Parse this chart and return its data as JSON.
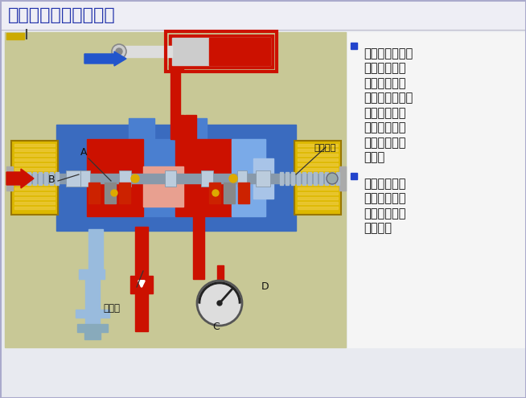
{
  "title": "（十五）动臂再生回路",
  "title_color": "#2233aa",
  "bg_top": "#e8eaf0",
  "bg_diagram": "#c8c896",
  "blue_dark": "#3a6bbf",
  "blue_mid": "#4a7fd0",
  "blue_light": "#7aaae8",
  "blue_pale": "#a8c4e8",
  "red_dark": "#cc1100",
  "red_mid": "#dd3322",
  "red_pale": "#e8a090",
  "yellow": "#ddb800",
  "yellow_light": "#eecc44",
  "gray_spool": "#8899aa",
  "gray_light": "#cccccc",
  "light_blue_drain": "#99bbdd",
  "bullet_color": "#2244cc",
  "text_color": "#111111",
  "bullet1": [
    "在动臂下降时，",
    "若缸头压力小",
    "于缸底压力，",
    "则单向阀打开，",
    "增加流向缸底",
    "的回油流量，",
    "提高下降速度",
    "及节能"
  ],
  "bullet2": [
    "若缸头压力大",
    "于缸底压力，",
    "则再生回路单",
    "向阀关闭"
  ],
  "label_main_valve": "主阀阀芯",
  "label_check_valve": "单向阀"
}
